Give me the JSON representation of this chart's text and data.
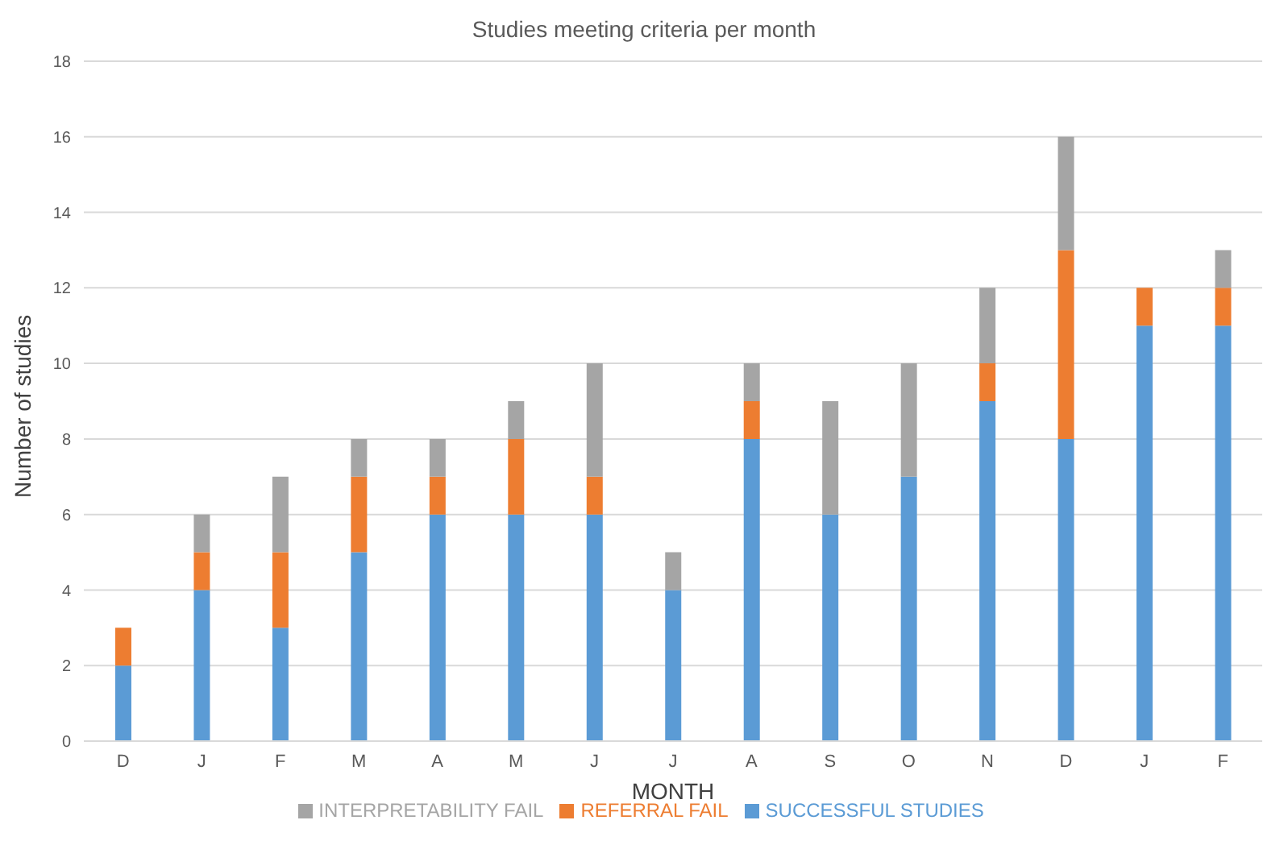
{
  "chart_data": {
    "type": "bar",
    "title": "Studies meeting criteria per month",
    "xlabel": "MONTH",
    "ylabel": "Number of studies",
    "categories": [
      "D",
      "J",
      "F",
      "M",
      "A",
      "M",
      "J",
      "J",
      "A",
      "S",
      "O",
      "N",
      "D",
      "J",
      "F"
    ],
    "stacked": true,
    "series": [
      {
        "name": "SUCCESSFUL STUDIES",
        "color": "#5b9bd5",
        "values": [
          2,
          4,
          3,
          5,
          6,
          6,
          6,
          4,
          8,
          6,
          7,
          9,
          8,
          11,
          11
        ]
      },
      {
        "name": "REFERRAL FAIL",
        "color": "#ed7d31",
        "values": [
          1,
          1,
          2,
          2,
          1,
          2,
          1,
          0,
          1,
          0,
          0,
          1,
          5,
          1,
          1
        ]
      },
      {
        "name": "INTERPRETABILITY FAIL",
        "color": "#a5a5a5",
        "values": [
          0,
          1,
          2,
          1,
          1,
          1,
          3,
          1,
          1,
          3,
          3,
          2,
          3,
          0,
          1
        ]
      }
    ],
    "ylim": [
      0,
      18
    ],
    "yticks": [
      0,
      2,
      4,
      6,
      8,
      10,
      12,
      14,
      16,
      18
    ],
    "grid": "y",
    "legend": "bottom"
  }
}
